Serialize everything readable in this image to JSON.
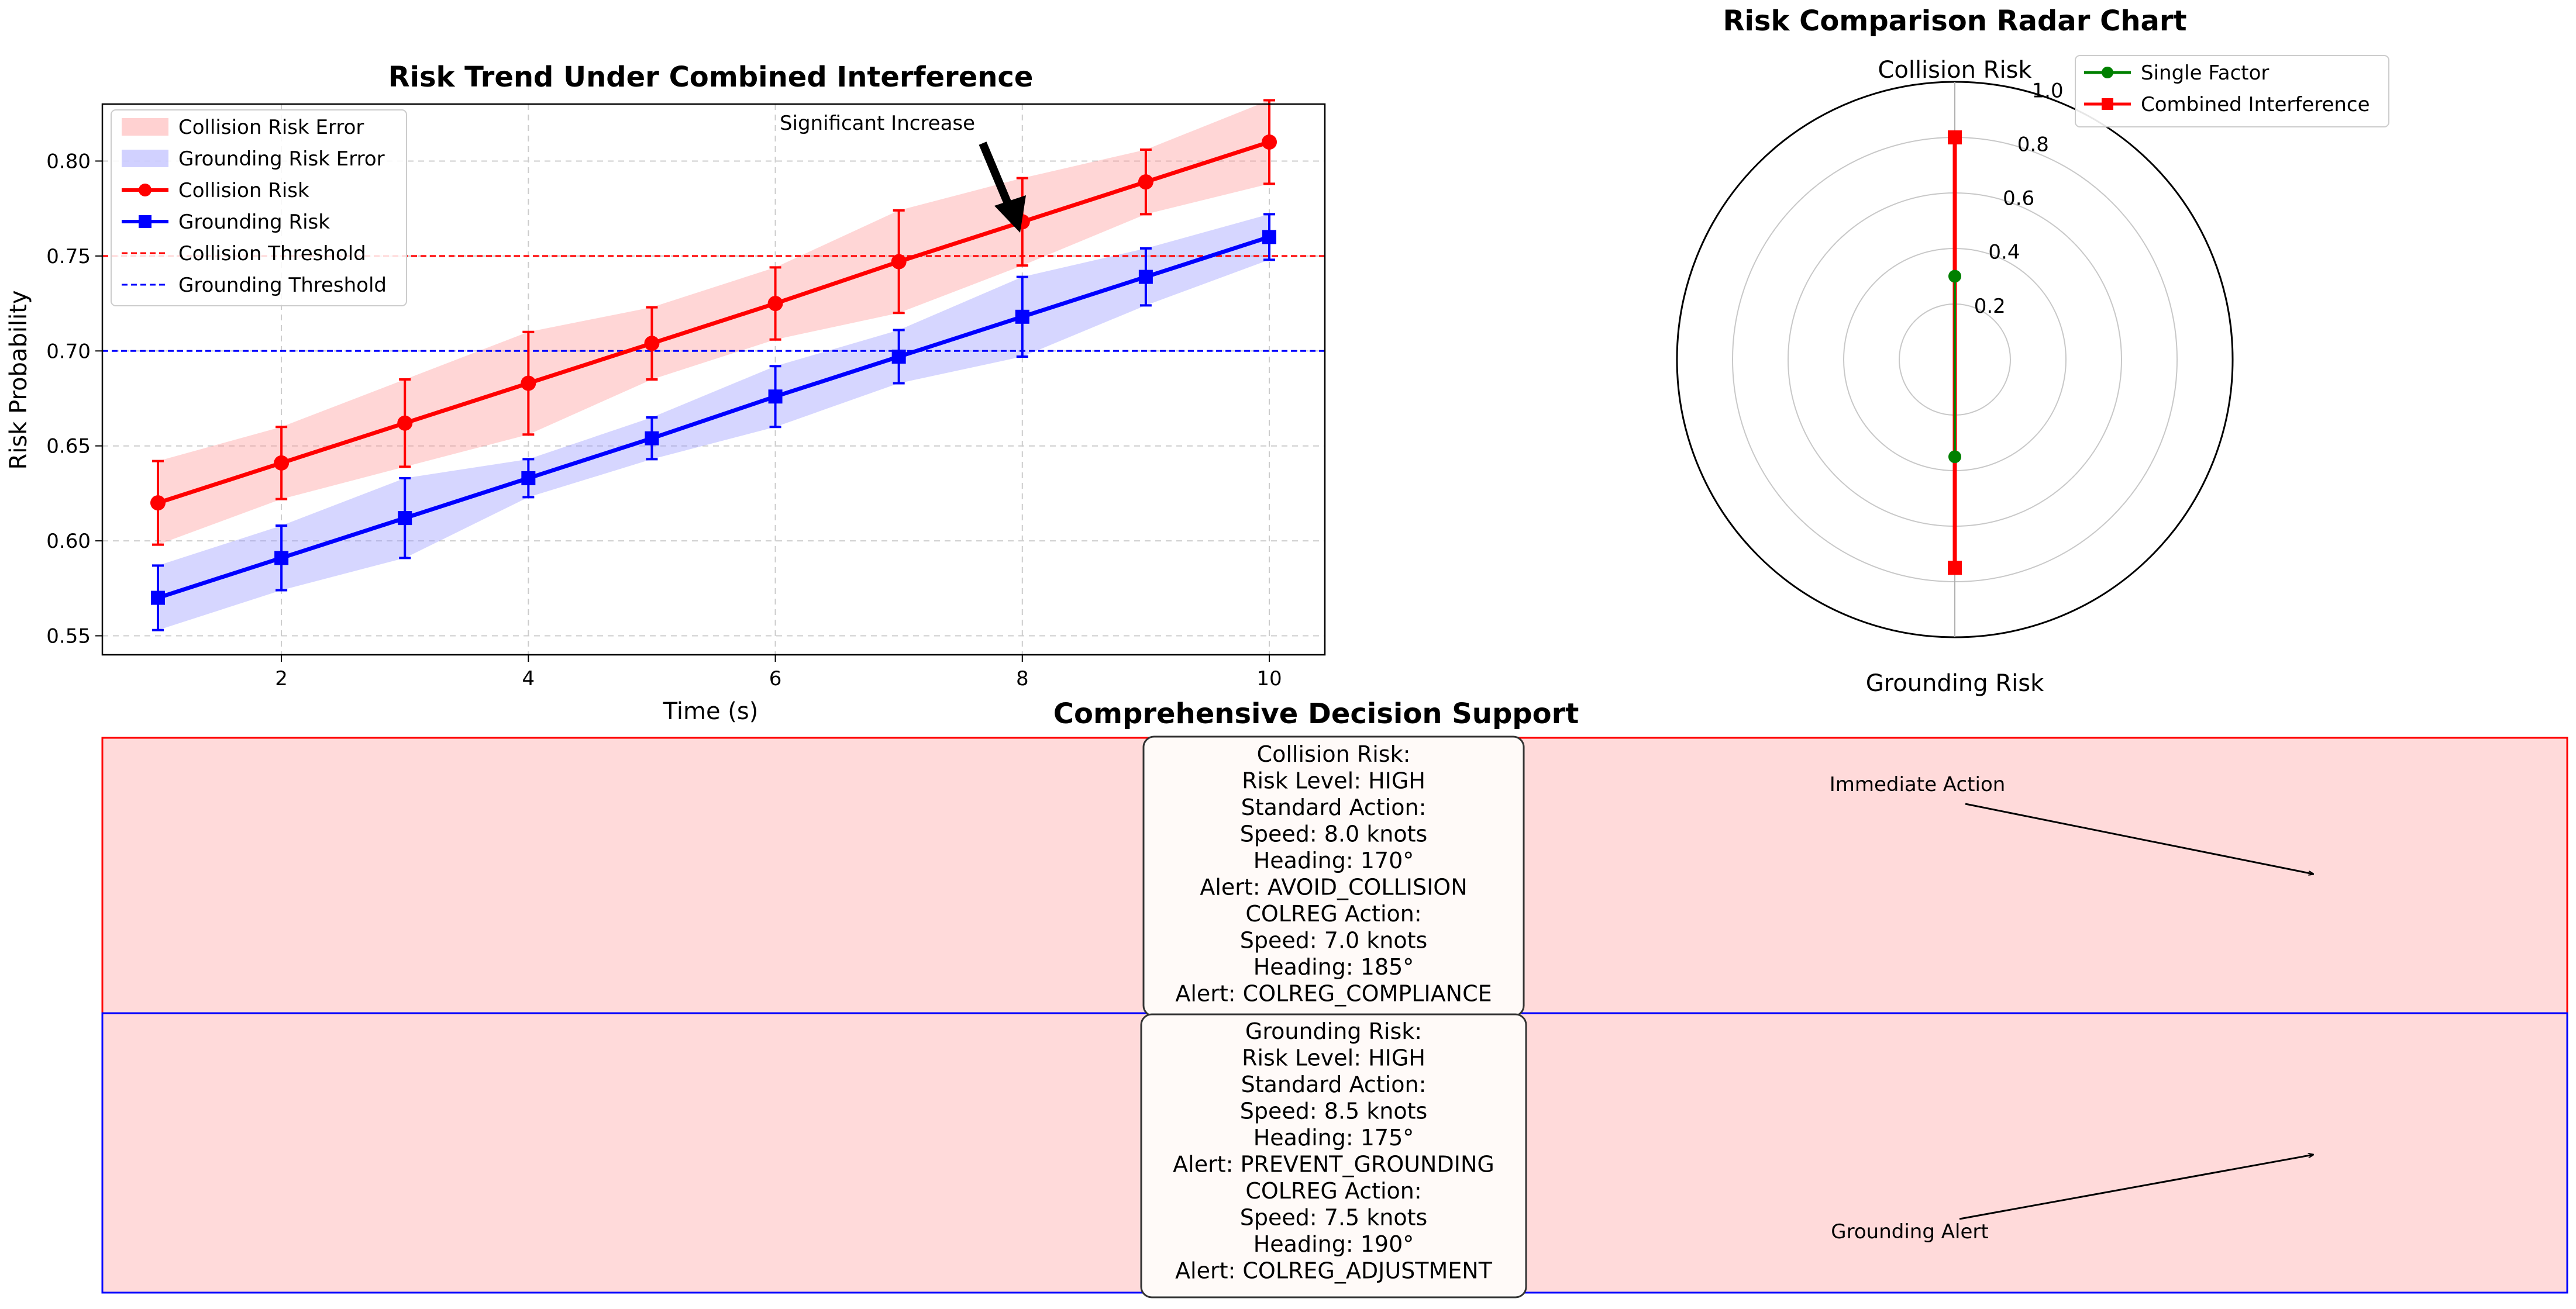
{
  "chart_data": [
    {
      "type": "line",
      "title": "Risk Trend Under Combined Interference",
      "xlabel": "Time (s)",
      "ylabel": "Risk Probability",
      "xlim": [
        0.55,
        10.45
      ],
      "ylim": [
        0.54,
        0.83
      ],
      "xticks": [
        2,
        4,
        6,
        8,
        10
      ],
      "yticks": [
        0.55,
        0.6,
        0.65,
        0.7,
        0.75,
        0.8
      ],
      "grid": true,
      "legend_position": "top-left",
      "x": [
        1,
        2,
        3,
        4,
        5,
        6,
        7,
        8,
        9,
        10
      ],
      "series": [
        {
          "name": "Collision Risk",
          "color": "#ff0000",
          "marker": "circle",
          "values": [
            0.62,
            0.641,
            0.662,
            0.683,
            0.704,
            0.725,
            0.747,
            0.768,
            0.789,
            0.81
          ],
          "errors": [
            0.022,
            0.019,
            0.023,
            0.027,
            0.019,
            0.019,
            0.027,
            0.023,
            0.017,
            0.022
          ]
        },
        {
          "name": "Grounding Risk",
          "color": "#0000ff",
          "marker": "square",
          "values": [
            0.57,
            0.591,
            0.612,
            0.633,
            0.654,
            0.676,
            0.697,
            0.718,
            0.739,
            0.76
          ],
          "errors": [
            0.017,
            0.017,
            0.021,
            0.01,
            0.011,
            0.016,
            0.014,
            0.021,
            0.015,
            0.012
          ]
        }
      ],
      "bands": [
        {
          "name": "Collision Risk Error",
          "color": "#ff9999"
        },
        {
          "name": "Grounding Risk Error",
          "color": "#9999ff"
        }
      ],
      "thresholds": [
        {
          "name": "Collision Threshold",
          "value": 0.75,
          "color": "#ff0000"
        },
        {
          "name": "Grounding Threshold",
          "value": 0.7,
          "color": "#0000ff"
        }
      ],
      "legend": [
        "Collision Risk Error",
        "Grounding Risk Error",
        "Collision Risk",
        "Grounding Risk",
        "Collision Threshold",
        "Grounding Threshold"
      ],
      "annotation": {
        "text": "Significant Increase",
        "x": 8,
        "y": 0.768
      }
    },
    {
      "type": "radar",
      "title": "Risk Comparison Radar Chart",
      "axes": [
        "Collision Risk",
        "Grounding Risk"
      ],
      "rlim": [
        0,
        1.0
      ],
      "rticks": [
        "0.2",
        "0.4",
        "0.6",
        "0.8",
        "1.0"
      ],
      "rtick_values": [
        0.2,
        0.4,
        0.6,
        0.8,
        1.0
      ],
      "legend_position": "top-right",
      "series": [
        {
          "name": "Single Factor",
          "color": "#008000",
          "marker": "circle",
          "values": [
            0.3,
            0.35
          ]
        },
        {
          "name": "Combined Interference",
          "color": "#ff0000",
          "marker": "square",
          "values": [
            0.8,
            0.75
          ]
        }
      ]
    }
  ],
  "decision": {
    "title": "Comprehensive Decision Support",
    "collision": {
      "lines": [
        "Collision Risk:",
        "Risk Level: HIGH",
        "Standard Action:",
        "Speed: 8.0 knots",
        "Heading: 170°",
        "Alert: AVOID_COLLISION",
        "COLREG Action:",
        "Speed: 7.0 knots",
        "Heading: 185°",
        "Alert: COLREG_COMPLIANCE"
      ],
      "annotation": "Immediate Action",
      "border_color": "#ff0000"
    },
    "grounding": {
      "lines": [
        "Grounding Risk:",
        "Risk Level: HIGH",
        "Standard Action:",
        "Speed: 8.5 knots",
        "Heading: 175°",
        "Alert: PREVENT_GROUNDING",
        "COLREG Action:",
        "Speed: 7.5 knots",
        "Heading: 190°",
        "Alert: COLREG_ADJUSTMENT"
      ],
      "annotation": "Grounding Alert",
      "border_color": "#0000ff"
    },
    "fill_color": "#ffdada"
  }
}
